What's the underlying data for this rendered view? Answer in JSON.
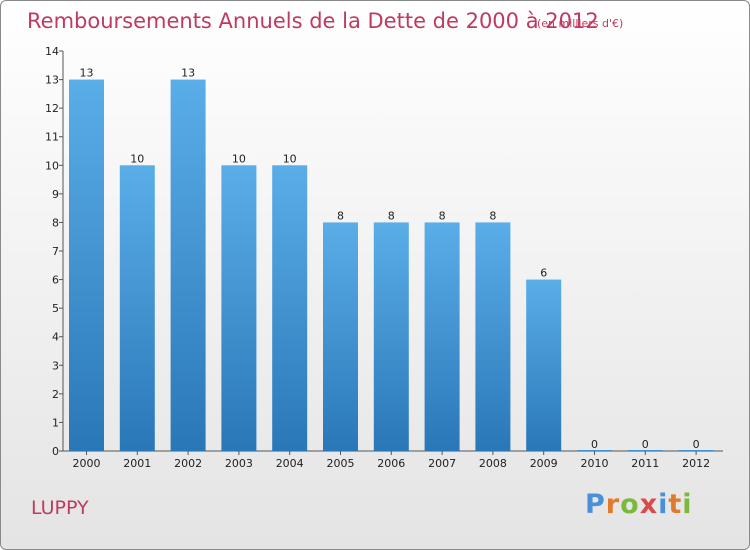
{
  "header": {
    "title": "Remboursements Annuels de la Dette de 2000 à 2012",
    "unit": "(en milliers d'€)"
  },
  "footer": {
    "entity": "LUPPY",
    "logo": {
      "letters": [
        "P",
        "r",
        "o",
        "x",
        "i",
        "t",
        "i"
      ],
      "colors": [
        "#4a90d9",
        "#e07b2a",
        "#7cb83a",
        "#d94a4a",
        "#4a90d9",
        "#e07b2a",
        "#7cb83a"
      ]
    }
  },
  "chart_data": {
    "type": "bar",
    "title": "Remboursements Annuels de la Dette de 2000 à 2012",
    "categories": [
      "2000",
      "2001",
      "2002",
      "2003",
      "2004",
      "2005",
      "2006",
      "2007",
      "2008",
      "2009",
      "2010",
      "2011",
      "2012"
    ],
    "values": [
      13,
      10,
      13,
      10,
      10,
      8,
      8,
      8,
      8,
      6,
      0,
      0,
      0
    ],
    "data_labels": [
      "13",
      "10",
      "13",
      "10",
      "10",
      "8",
      "8",
      "8",
      "8",
      "6",
      "0",
      "0",
      "0"
    ],
    "yticks": [
      0,
      1,
      2,
      3,
      4,
      5,
      6,
      7,
      8,
      9,
      10,
      11,
      12,
      13,
      14
    ],
    "ylim": [
      0,
      14
    ],
    "xlabel": "",
    "ylabel": "",
    "grid": false,
    "bar_color_top": "#5aaee8",
    "bar_color_bottom": "#2a77b8"
  }
}
